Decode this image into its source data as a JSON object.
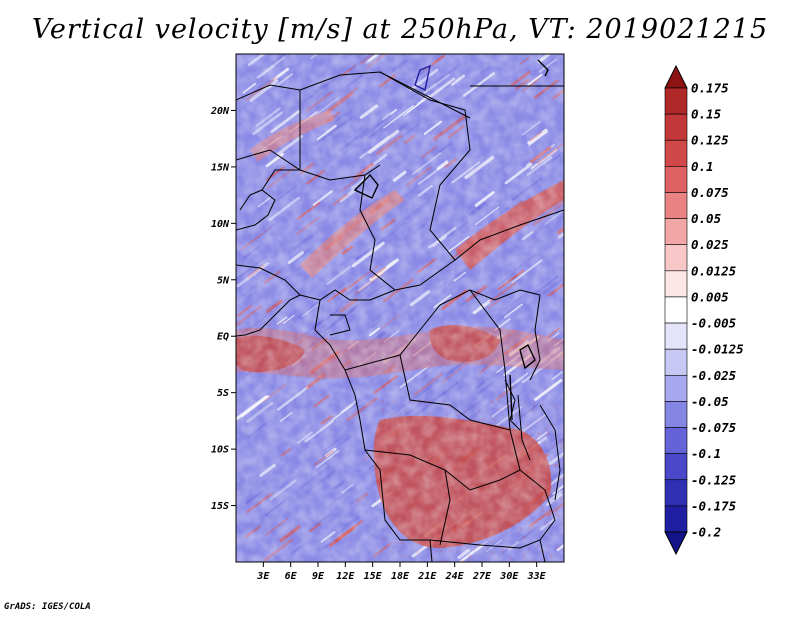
{
  "title": "Vertical velocity [m/s] at 250hPa, VT: 2019021215",
  "credit": "GrADS: IGES/COLA",
  "chart_data": {
    "type": "heatmap",
    "title": "Vertical velocity [m/s] at 250hPa, VT: 2019021215",
    "variable": "Vertical velocity",
    "units": "m/s",
    "level": "250hPa",
    "valid_time": "2019021215",
    "x_axis": {
      "range_deg": [
        0,
        36
      ],
      "ticks": [
        {
          "value": 3,
          "label": "3E"
        },
        {
          "value": 6,
          "label": "6E"
        },
        {
          "value": 9,
          "label": "9E"
        },
        {
          "value": 12,
          "label": "12E"
        },
        {
          "value": 15,
          "label": "15E"
        },
        {
          "value": 18,
          "label": "18E"
        },
        {
          "value": 21,
          "label": "21E"
        },
        {
          "value": 24,
          "label": "24E"
        },
        {
          "value": 27,
          "label": "27E"
        },
        {
          "value": 30,
          "label": "30E"
        },
        {
          "value": 33,
          "label": "33E"
        }
      ]
    },
    "y_axis": {
      "range_deg": [
        -20,
        25
      ],
      "ticks": [
        {
          "value": 20,
          "label": "20N"
        },
        {
          "value": 15,
          "label": "15N"
        },
        {
          "value": 10,
          "label": "10N"
        },
        {
          "value": 5,
          "label": "5N"
        },
        {
          "value": 0,
          "label": "EQ"
        },
        {
          "value": -5,
          "label": "5S"
        },
        {
          "value": -10,
          "label": "10S"
        },
        {
          "value": -15,
          "label": "15S"
        }
      ]
    },
    "colorbar": {
      "levels": [
        {
          "label": "0.175",
          "color": "#9c1c1c"
        },
        {
          "label": "0.15",
          "color": "#b02727"
        },
        {
          "label": "0.125",
          "color": "#c23737"
        },
        {
          "label": "0.1",
          "color": "#d04848"
        },
        {
          "label": "0.075",
          "color": "#de6262"
        },
        {
          "label": "0.05",
          "color": "#e98383"
        },
        {
          "label": "0.025",
          "color": "#f2a6a6"
        },
        {
          "label": "0.0125",
          "color": "#f8c8c8"
        },
        {
          "label": "0.005",
          "color": "#fce6e6"
        },
        {
          "label": "-0.005",
          "color": "#ffffff"
        },
        {
          "label": "-0.0125",
          "color": "#e4e4fb"
        },
        {
          "label": "-0.025",
          "color": "#c8c8f4"
        },
        {
          "label": "-0.05",
          "color": "#a8a8ee"
        },
        {
          "label": "-0.075",
          "color": "#8585e3"
        },
        {
          "label": "-0.1",
          "color": "#6464d8"
        },
        {
          "label": "-0.125",
          "color": "#4848c9"
        },
        {
          "label": "-0.175",
          "color": "#3030b5"
        },
        {
          "label": "-0.2",
          "color": "#1e1ea0"
        }
      ],
      "top_extension_color": "#8e1414",
      "bottom_extension_color": "#14148a"
    },
    "field_summary": {
      "background": "#8a8ae6",
      "upward_motion_color": "#d9534f",
      "downward_motion_color": "#6f6fdc"
    }
  }
}
